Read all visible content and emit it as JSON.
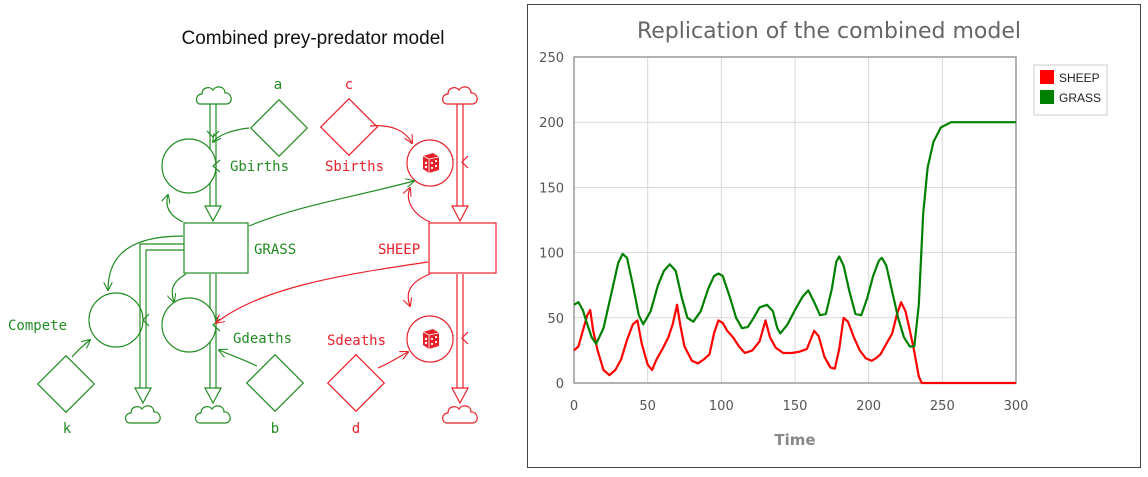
{
  "diagram": {
    "title": "Combined prey-predator model",
    "colors": {
      "grass": "#228b22",
      "sheep": "#e8202a"
    },
    "labels": {
      "a": "a",
      "b": "b",
      "c": "c",
      "d": "d",
      "k": "k",
      "gbirths": "Gbirths",
      "gdeaths": "Gdeaths",
      "grass": "GRASS",
      "compete": "Compete",
      "sbirths": "Sbirths",
      "sdeaths": "Sdeaths",
      "sheep": "SHEEP"
    }
  },
  "chart_data": {
    "type": "line",
    "title": "Replication of the combined model",
    "xlabel": "Time",
    "ylabel": "",
    "xlim": [
      0,
      300
    ],
    "ylim": [
      0,
      250
    ],
    "xticks": [
      0,
      50,
      100,
      150,
      200,
      250,
      300
    ],
    "yticks": [
      0,
      50,
      100,
      150,
      200,
      250
    ],
    "grid": true,
    "legend_position": "top-right",
    "series": [
      {
        "name": "SHEEP",
        "color": "#ff0000",
        "points": [
          [
            0,
            25
          ],
          [
            3,
            28
          ],
          [
            6,
            40
          ],
          [
            9,
            52
          ],
          [
            11,
            56
          ],
          [
            13,
            40
          ],
          [
            16,
            25
          ],
          [
            20,
            10
          ],
          [
            24,
            6
          ],
          [
            28,
            10
          ],
          [
            32,
            18
          ],
          [
            36,
            33
          ],
          [
            40,
            45
          ],
          [
            43,
            48
          ],
          [
            46,
            30
          ],
          [
            50,
            14
          ],
          [
            53,
            10
          ],
          [
            56,
            18
          ],
          [
            60,
            26
          ],
          [
            64,
            35
          ],
          [
            67,
            45
          ],
          [
            70,
            60
          ],
          [
            72,
            45
          ],
          [
            75,
            28
          ],
          [
            80,
            17
          ],
          [
            84,
            15
          ],
          [
            88,
            18
          ],
          [
            92,
            22
          ],
          [
            95,
            38
          ],
          [
            98,
            48
          ],
          [
            101,
            46
          ],
          [
            104,
            40
          ],
          [
            108,
            35
          ],
          [
            112,
            28
          ],
          [
            116,
            23
          ],
          [
            121,
            25
          ],
          [
            126,
            32
          ],
          [
            130,
            48
          ],
          [
            133,
            35
          ],
          [
            137,
            27
          ],
          [
            142,
            23
          ],
          [
            148,
            23
          ],
          [
            153,
            24
          ],
          [
            158,
            26
          ],
          [
            163,
            40
          ],
          [
            166,
            36
          ],
          [
            170,
            20
          ],
          [
            174,
            12
          ],
          [
            177,
            11
          ],
          [
            180,
            26
          ],
          [
            183,
            50
          ],
          [
            186,
            47
          ],
          [
            190,
            35
          ],
          [
            194,
            25
          ],
          [
            198,
            19
          ],
          [
            202,
            17
          ],
          [
            205,
            19
          ],
          [
            208,
            22
          ],
          [
            212,
            30
          ],
          [
            216,
            38
          ],
          [
            219,
            52
          ],
          [
            222,
            62
          ],
          [
            225,
            55
          ],
          [
            228,
            40
          ],
          [
            231,
            24
          ],
          [
            234,
            5
          ],
          [
            236,
            0
          ],
          [
            240,
            0
          ],
          [
            300,
            0
          ]
        ]
      },
      {
        "name": "GRASS",
        "color": "#008000",
        "points": [
          [
            0,
            60
          ],
          [
            3,
            62
          ],
          [
            6,
            56
          ],
          [
            9,
            45
          ],
          [
            12,
            35
          ],
          [
            15,
            30
          ],
          [
            20,
            42
          ],
          [
            26,
            72
          ],
          [
            30,
            92
          ],
          [
            33,
            99
          ],
          [
            36,
            96
          ],
          [
            40,
            75
          ],
          [
            44,
            52
          ],
          [
            47,
            45
          ],
          [
            52,
            55
          ],
          [
            57,
            75
          ],
          [
            61,
            86
          ],
          [
            65,
            91
          ],
          [
            69,
            86
          ],
          [
            73,
            66
          ],
          [
            77,
            50
          ],
          [
            81,
            47
          ],
          [
            86,
            55
          ],
          [
            91,
            72
          ],
          [
            95,
            82
          ],
          [
            98,
            84
          ],
          [
            101,
            82
          ],
          [
            106,
            65
          ],
          [
            110,
            50
          ],
          [
            114,
            42
          ],
          [
            118,
            43
          ],
          [
            122,
            50
          ],
          [
            126,
            58
          ],
          [
            131,
            60
          ],
          [
            135,
            55
          ],
          [
            138,
            42
          ],
          [
            140,
            38
          ],
          [
            145,
            45
          ],
          [
            150,
            56
          ],
          [
            155,
            66
          ],
          [
            159,
            71
          ],
          [
            163,
            62
          ],
          [
            167,
            52
          ],
          [
            171,
            53
          ],
          [
            175,
            72
          ],
          [
            178,
            93
          ],
          [
            180,
            97
          ],
          [
            183,
            90
          ],
          [
            187,
            70
          ],
          [
            191,
            53
          ],
          [
            195,
            52
          ],
          [
            199,
            65
          ],
          [
            203,
            82
          ],
          [
            207,
            94
          ],
          [
            209,
            96
          ],
          [
            212,
            90
          ],
          [
            216,
            70
          ],
          [
            220,
            50
          ],
          [
            224,
            35
          ],
          [
            228,
            28
          ],
          [
            231,
            28
          ],
          [
            234,
            60
          ],
          [
            237,
            130
          ],
          [
            240,
            165
          ],
          [
            244,
            185
          ],
          [
            249,
            196
          ],
          [
            256,
            200
          ],
          [
            265,
            200
          ],
          [
            300,
            200
          ]
        ]
      }
    ]
  }
}
